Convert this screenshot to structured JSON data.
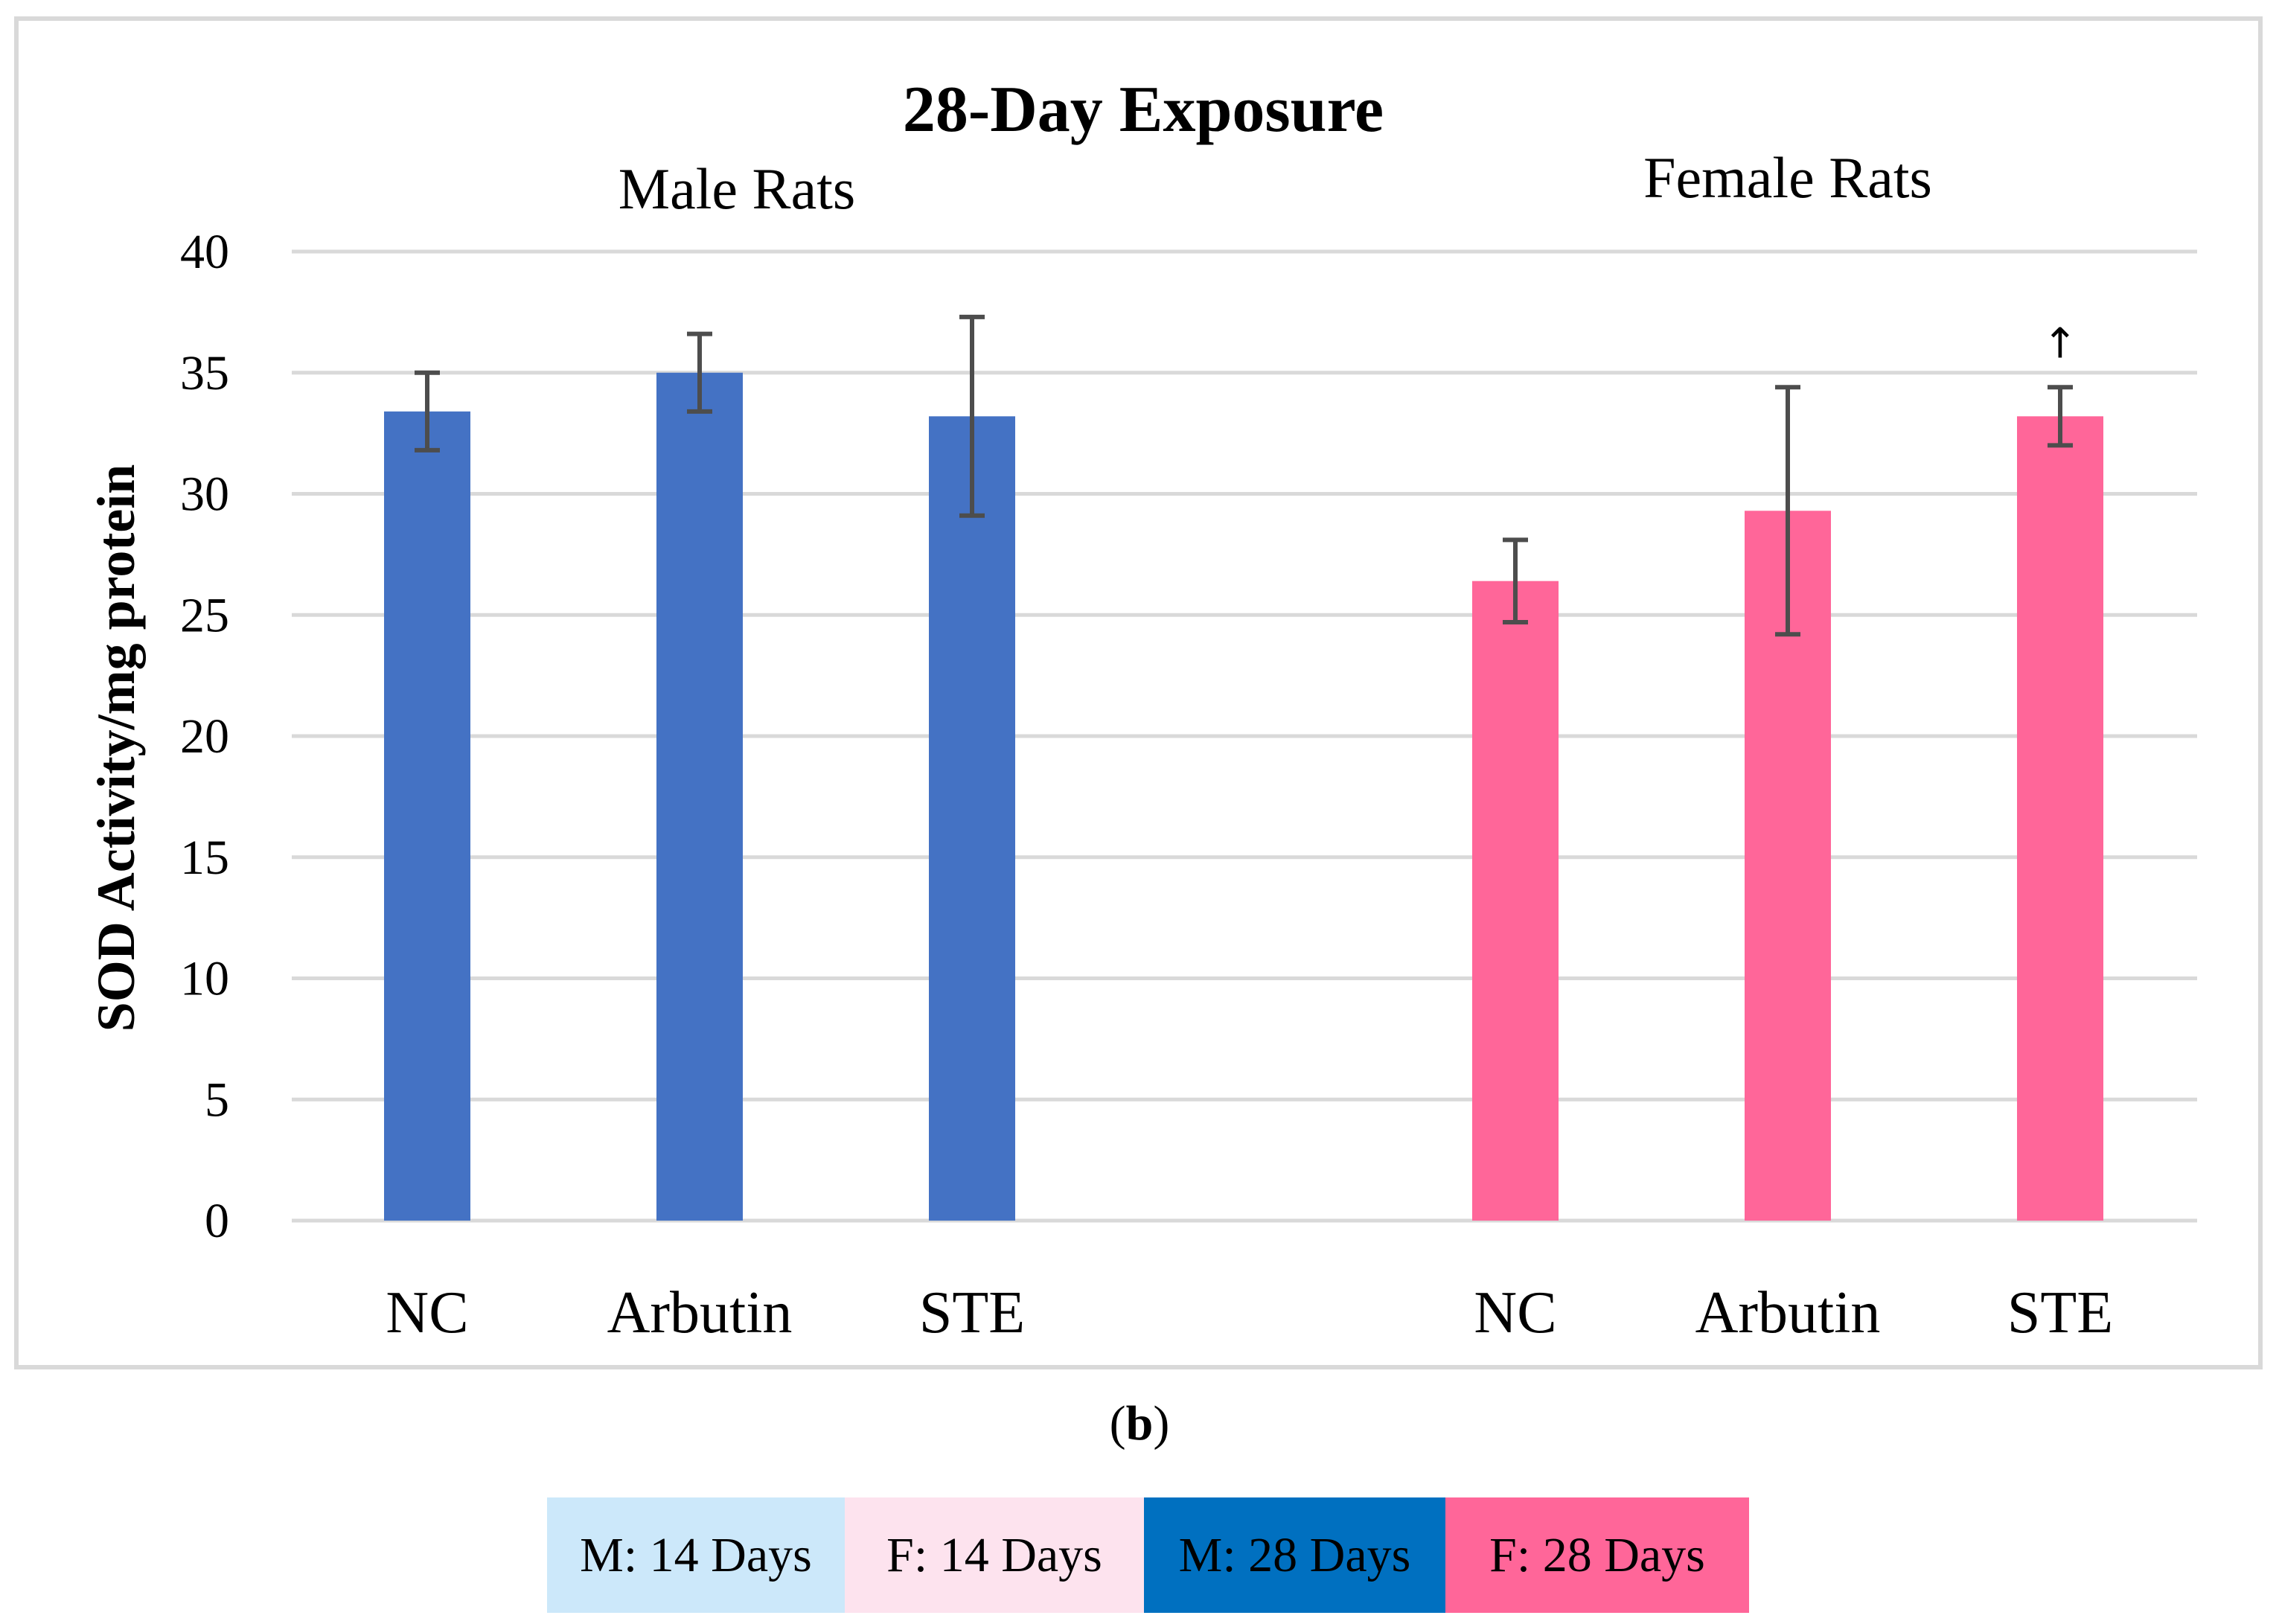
{
  "chart_data": {
    "type": "bar",
    "title": "28-Day Exposure",
    "ylabel": "SOD Activity/mg protein",
    "xlabel": "",
    "ylim": [
      0,
      40
    ],
    "yticks": [
      0,
      5,
      10,
      15,
      20,
      25,
      30,
      35,
      40
    ],
    "grid": true,
    "groups": [
      {
        "name": "Male Rats",
        "color": "#4472c4",
        "categories": [
          "NC",
          "Arbutin",
          "STE"
        ],
        "values": [
          33.4,
          35.0,
          33.2
        ],
        "errors": [
          1.6,
          1.6,
          4.1
        ],
        "annotations": [
          "",
          "",
          ""
        ]
      },
      {
        "name": "Female Rats",
        "color": "#ff6699",
        "categories": [
          "NC",
          "Arbutin",
          "STE"
        ],
        "values": [
          26.4,
          29.3,
          33.2
        ],
        "errors": [
          1.7,
          5.1,
          1.2
        ],
        "annotations": [
          "",
          "",
          "↑"
        ]
      }
    ]
  },
  "caption": {
    "open": "(",
    "letter": "b",
    "close": ")"
  },
  "legend": [
    {
      "label": "M: 14 Days",
      "color": "#cce8fa"
    },
    {
      "label": "F: 14 Days",
      "color": "#fde3ee"
    },
    {
      "label": "M: 28 Days",
      "color": "#0070c0"
    },
    {
      "label": "F: 28 Days",
      "color": "#ff6699"
    }
  ]
}
